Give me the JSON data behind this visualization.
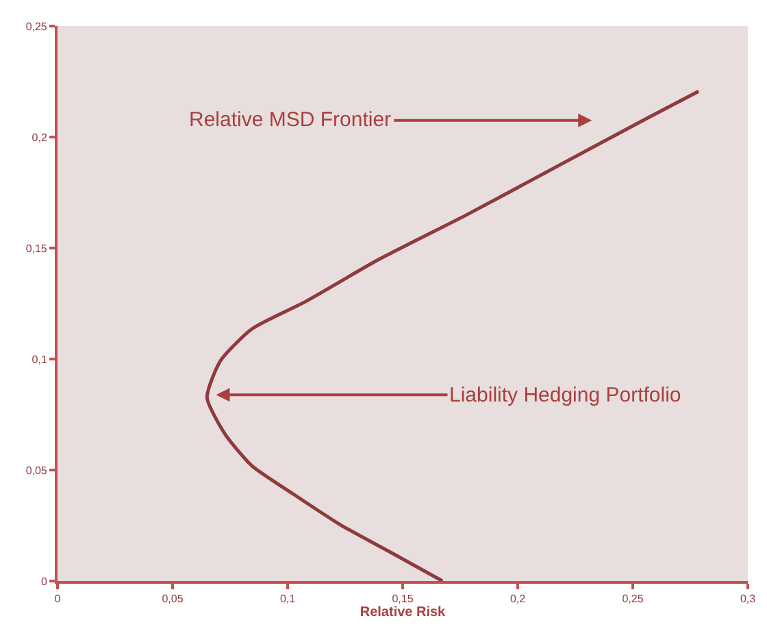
{
  "chart_data": {
    "type": "line",
    "xlabel": "Relative Risk",
    "series": [
      {
        "color": "#8e3b3e",
        "x": [
          0.1673,
          0.145,
          0.123,
          0.102,
          0.0845,
          0.0728,
          0.065,
          0.0708,
          0.0845,
          0.1078,
          0.139,
          0.1779,
          0.2168,
          0.2557,
          0.2786
        ],
        "values": [
          0,
          0.0128,
          0.0253,
          0.0395,
          0.0519,
          0.0662,
          0.0827,
          0.0992,
          0.1136,
          0.1259,
          0.1445,
          0.165,
          0.1866,
          0.2082,
          0.2206
        ]
      }
    ],
    "xlim": [
      0,
      0.3
    ],
    "ylim": [
      0,
      0.25
    ],
    "xticks": [
      0,
      {
        "value": 0.05,
        "label": "0,05"
      },
      {
        "value": 0.1,
        "label": "0,1"
      },
      {
        "value": 0.15,
        "label": "0,15"
      },
      {
        "value": 0.2,
        "label": "0,2"
      },
      {
        "value": 0.25,
        "label": "0,25"
      },
      {
        "value": 0.3,
        "label": "0,3"
      }
    ],
    "yticks": [
      0,
      {
        "value": 0.05,
        "label": "0,05"
      },
      {
        "value": 0.1,
        "label": "0,1"
      },
      {
        "value": 0.15,
        "label": "0,15"
      },
      {
        "value": 0.2,
        "label": "0,2"
      },
      {
        "value": 0.25,
        "label": "0,25"
      }
    ],
    "annotations": [
      "Relative MSD Frontier",
      {
        "text": "Liability Hedging Portfolio",
        "x": 0.0677,
        "y": 0.0839
      }
    ],
    "grid": false,
    "marker": "none",
    "line_style": "solid"
  }
}
